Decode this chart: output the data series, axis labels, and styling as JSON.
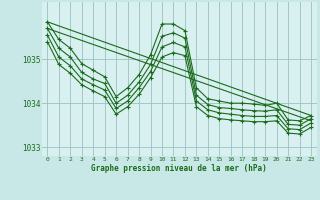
{
  "background_color": "#c8e8e8",
  "plot_bg_color": "#d8f0f0",
  "grid_color": "#9bbfbf",
  "line_color": "#1a6b1a",
  "marker_color": "#1a6b1a",
  "xlabel": "Graphe pression niveau de la mer (hPa)",
  "ylim": [
    1032.8,
    1036.3
  ],
  "xlim": [
    -0.5,
    23.5
  ],
  "yticks": [
    1033,
    1034,
    1035
  ],
  "xticks": [
    0,
    1,
    2,
    3,
    4,
    5,
    6,
    7,
    8,
    9,
    10,
    11,
    12,
    13,
    14,
    15,
    16,
    17,
    18,
    19,
    20,
    21,
    22,
    23
  ],
  "series": [
    [
      1035.85,
      1035.45,
      1035.25,
      1034.9,
      1034.75,
      1034.6,
      1034.15,
      1034.35,
      1034.65,
      1035.1,
      1035.8,
      1035.8,
      1035.65,
      1034.35,
      1034.1,
      1034.05,
      1034.0,
      1034.0,
      1033.98,
      1033.95,
      1034.0,
      1033.62,
      1033.6,
      1033.72
    ],
    [
      1035.7,
      1035.25,
      1035.05,
      1034.7,
      1034.55,
      1034.45,
      1034.0,
      1034.18,
      1034.48,
      1034.88,
      1035.52,
      1035.6,
      1035.48,
      1034.18,
      1033.97,
      1033.9,
      1033.88,
      1033.85,
      1033.83,
      1033.82,
      1033.85,
      1033.52,
      1033.5,
      1033.65
    ],
    [
      1035.55,
      1035.05,
      1034.85,
      1034.55,
      1034.42,
      1034.3,
      1033.88,
      1034.05,
      1034.35,
      1034.72,
      1035.28,
      1035.38,
      1035.28,
      1034.05,
      1033.85,
      1033.78,
      1033.75,
      1033.72,
      1033.7,
      1033.7,
      1033.72,
      1033.42,
      1033.4,
      1033.55
    ],
    [
      1035.4,
      1034.88,
      1034.68,
      1034.42,
      1034.28,
      1034.15,
      1033.75,
      1033.92,
      1034.2,
      1034.58,
      1035.05,
      1035.15,
      1035.08,
      1033.92,
      1033.72,
      1033.65,
      1033.62,
      1033.6,
      1033.58,
      1033.58,
      1033.6,
      1033.32,
      1033.3,
      1033.45
    ]
  ],
  "straight_line": {
    "x": [
      0,
      23
    ],
    "y": [
      1035.85,
      1033.72
    ]
  }
}
